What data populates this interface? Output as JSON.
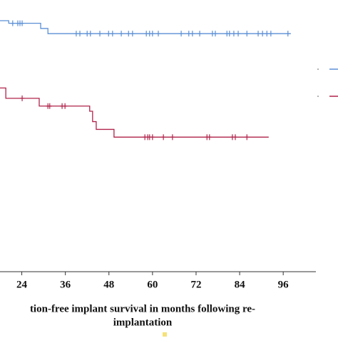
{
  "chart_data": {
    "type": "line",
    "step": true,
    "xlabel": [
      "tion-free implant survival in months following re-",
      "implantation"
    ],
    "xlim": [
      18,
      105
    ],
    "xticks": [
      24,
      36,
      48,
      60,
      72,
      84,
      96
    ],
    "ylim": [
      0,
      1.05
    ],
    "series": [
      {
        "color": "#5b8fd6",
        "x": [
          18,
          20.4,
          29.2,
          31.2,
          98.1
        ],
        "values": [
          0.97,
          0.96,
          0.94,
          0.92,
          0.92
        ],
        "censored_x": [
          21.5,
          22.9,
          23.5,
          24.1,
          39.0,
          40.0,
          42.0,
          42.9,
          45.5,
          47.9,
          49.0,
          51.4,
          53.4,
          54.5,
          58.3,
          59.2,
          60.0,
          61.6,
          67.9,
          70.0,
          71.0,
          73.0,
          76.5,
          77.3,
          80.5,
          81.2,
          82.4,
          83.6,
          86.0,
          89.1,
          90.3,
          91.5,
          92.6,
          97.3
        ],
        "censored_values": [
          0.96,
          0.96,
          0.96,
          0.96,
          0.92,
          0.92,
          0.92,
          0.92,
          0.92,
          0.92,
          0.92,
          0.92,
          0.92,
          0.92,
          0.92,
          0.92,
          0.92,
          0.92,
          0.92,
          0.92,
          0.92,
          0.92,
          0.92,
          0.92,
          0.92,
          0.92,
          0.92,
          0.92,
          0.92,
          0.92,
          0.92,
          0.92,
          0.92,
          0.92
        ]
      },
      {
        "color": "#b0234a",
        "x": [
          18,
          19.6,
          28.8,
          42.7,
          43.5,
          44.5,
          49.4,
          92
        ],
        "values": [
          0.71,
          0.67,
          0.64,
          0.62,
          0.58,
          0.55,
          0.52,
          0.52
        ],
        "censored_x": [
          24.1,
          31.2,
          31.7,
          35.1,
          35.9,
          57.9,
          58.7,
          59.2,
          60.0,
          63.0,
          65.5,
          75.0,
          75.7,
          82.0,
          82.8,
          86.0
        ],
        "censored_values": [
          0.67,
          0.64,
          0.64,
          0.64,
          0.64,
          0.52,
          0.52,
          0.52,
          0.52,
          0.52,
          0.52,
          0.52,
          0.52,
          0.52,
          0.52,
          0.52
        ]
      }
    ]
  }
}
